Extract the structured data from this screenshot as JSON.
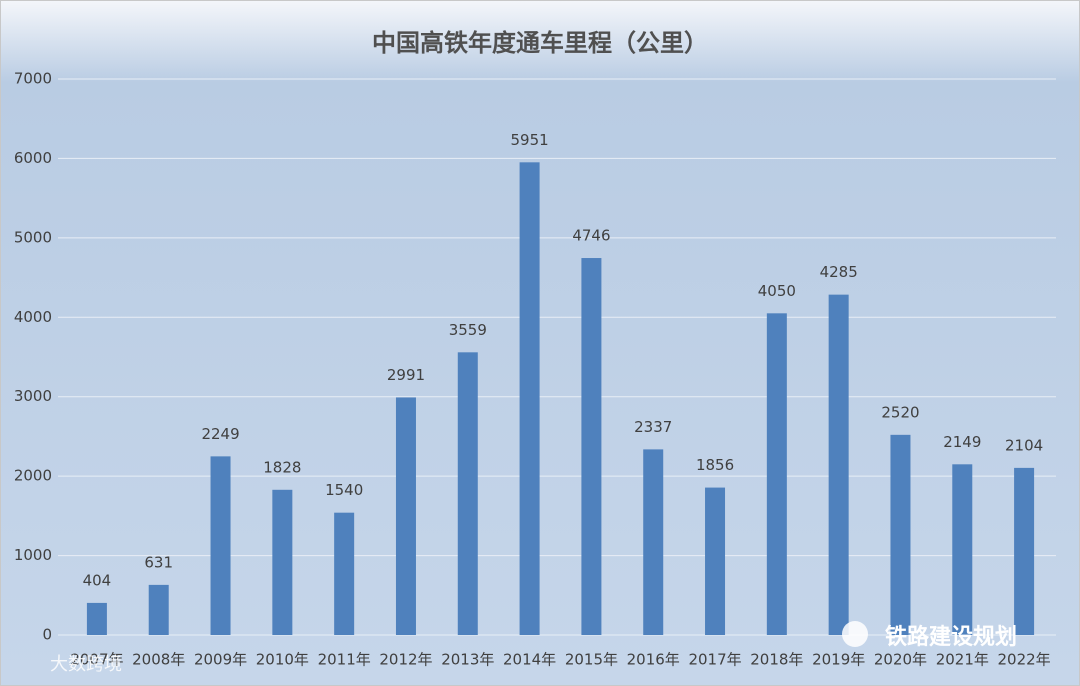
{
  "chart_data": {
    "type": "bar",
    "title": "中国高铁年度通车里程（公里）",
    "categories": [
      "2007年",
      "2008年",
      "2009年",
      "2010年",
      "2011年",
      "2012年",
      "2013年",
      "2014年",
      "2015年",
      "2016年",
      "2017年",
      "2018年",
      "2019年",
      "2020年",
      "2021年",
      "2022年"
    ],
    "values": [
      404,
      631,
      2249,
      1828,
      1540,
      2991,
      3559,
      5951,
      4746,
      2337,
      1856,
      4050,
      4285,
      2520,
      2149,
      2104
    ],
    "color": "#4f81bd",
    "ylim": [
      0,
      7000
    ],
    "yticks": [
      0,
      1000,
      2000,
      3000,
      4000,
      5000,
      6000,
      7000
    ],
    "grid": true,
    "annotations": [
      "铁路建设规划",
      "大数跨境"
    ]
  }
}
